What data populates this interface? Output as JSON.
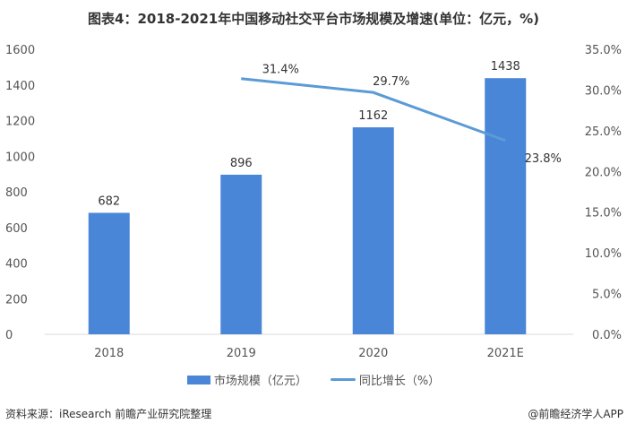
{
  "title": "图表4：2018-2021年中国移动社交平台市场规模及增速(单位：亿元，%)",
  "source": "资料来源：iResearch 前瞻产业研究院整理",
  "credit": "@前瞻经济学人APP",
  "chart_data": {
    "type": "bar+line",
    "categories": [
      "2018",
      "2019",
      "2020",
      "2021E"
    ],
    "series": [
      {
        "name": "市场规模（亿元）",
        "type": "bar",
        "axis": "left",
        "values": [
          682,
          896,
          1162,
          1438
        ],
        "labels": [
          "682",
          "896",
          "1162",
          "1438"
        ],
        "color": "#4a86d8"
      },
      {
        "name": "同比增长（%）",
        "type": "line",
        "axis": "right",
        "values": [
          null,
          31.4,
          29.7,
          23.8
        ],
        "labels": [
          "",
          "31.4%",
          "29.7%",
          "23.8%"
        ],
        "color": "#5b9bd5"
      }
    ],
    "left_axis": {
      "ylim": [
        0,
        1600
      ],
      "ticks": [
        "0",
        "200",
        "400",
        "600",
        "800",
        "1000",
        "1200",
        "1400",
        "1600"
      ]
    },
    "right_axis": {
      "ylim": [
        0,
        35
      ],
      "ticks": [
        "0.0%",
        "5.0%",
        "10.0%",
        "15.0%",
        "20.0%",
        "25.0%",
        "30.0%",
        "35.0%"
      ]
    },
    "grid": false,
    "legend": "bottom"
  }
}
